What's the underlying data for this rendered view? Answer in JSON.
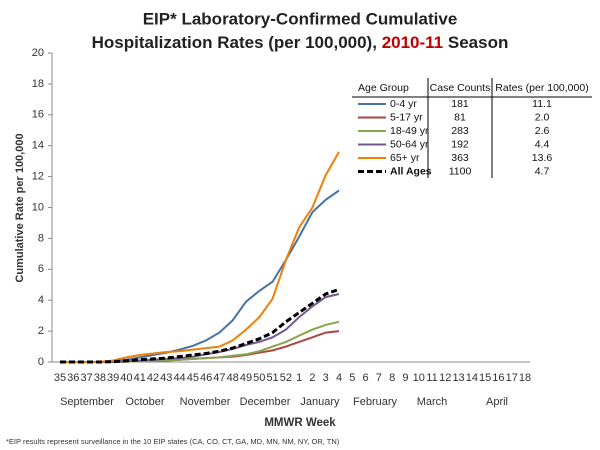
{
  "chart_data": {
    "type": "line",
    "title_line1": "EIP* Laboratory-Confirmed Cumulative",
    "title_line2": "Hospitalization Rates (per 100,000),",
    "title_highlight": "2010-11",
    "title_end": "Season",
    "highlight_color": "#c00000",
    "y_label": "Cumulative Rate per 100,000",
    "x_label": "MMWR Week",
    "footnote": "*EIP results represent surveillance in the 10 EIP states (CA, CO, CT, GA, MD, MN, NM, NY, OR, TN)",
    "months": [
      "September",
      "October",
      "November",
      "December",
      "January",
      "February",
      "March",
      "April"
    ],
    "categories": [
      "35",
      "36",
      "37",
      "38",
      "39",
      "40",
      "41",
      "42",
      "43",
      "44",
      "45",
      "46",
      "47",
      "48",
      "49",
      "50",
      "51",
      "52",
      "1",
      "2",
      "3",
      "4",
      "5",
      "6",
      "7",
      "8",
      "9",
      "10",
      "11",
      "12",
      "13",
      "14",
      "15",
      "16",
      "17",
      "18"
    ],
    "ylim": [
      0,
      20
    ],
    "yticks": [
      0,
      2,
      4,
      6,
      8,
      10,
      12,
      14,
      16,
      18,
      20
    ],
    "grid": false,
    "table_headers": [
      "Age Group",
      "Case Counts",
      "Rates (per 100,000)"
    ],
    "series": [
      {
        "name": "0-4 yr",
        "color": "#4572a7",
        "dashed": false,
        "case_count": 181,
        "rate": "11.1",
        "values": [
          0,
          0,
          0,
          0,
          0.05,
          0.15,
          0.3,
          0.45,
          0.6,
          0.8,
          1.05,
          1.4,
          1.9,
          2.7,
          3.9,
          4.6,
          5.2,
          6.6,
          8.1,
          9.7,
          10.5,
          11.1,
          null,
          null,
          null,
          null,
          null,
          null,
          null,
          null,
          null,
          null,
          null,
          null,
          null,
          null
        ]
      },
      {
        "name": "5-17 yr",
        "color": "#aa4643",
        "dashed": false,
        "case_count": 81,
        "rate": "2.0",
        "values": [
          0,
          0,
          0,
          0,
          0,
          0.02,
          0.05,
          0.08,
          0.1,
          0.15,
          0.2,
          0.25,
          0.3,
          0.35,
          0.45,
          0.6,
          0.75,
          1.0,
          1.3,
          1.6,
          1.9,
          2.0,
          null,
          null,
          null,
          null,
          null,
          null,
          null,
          null,
          null,
          null,
          null,
          null,
          null,
          null
        ]
      },
      {
        "name": "18-49 yr",
        "color": "#89a54e",
        "dashed": false,
        "case_count": 283,
        "rate": "2.6",
        "values": [
          0,
          0,
          0,
          0,
          0,
          0.02,
          0.05,
          0.08,
          0.12,
          0.15,
          0.2,
          0.25,
          0.3,
          0.4,
          0.5,
          0.7,
          1.0,
          1.3,
          1.7,
          2.1,
          2.4,
          2.6,
          null,
          null,
          null,
          null,
          null,
          null,
          null,
          null,
          null,
          null,
          null,
          null,
          null,
          null
        ]
      },
      {
        "name": "50-64 yr",
        "color": "#71588f",
        "dashed": false,
        "case_count": 192,
        "rate": "4.4",
        "values": [
          0,
          0,
          0,
          0,
          0.02,
          0.05,
          0.1,
          0.15,
          0.2,
          0.25,
          0.35,
          0.5,
          0.65,
          0.85,
          1.1,
          1.3,
          1.6,
          2.1,
          2.9,
          3.6,
          4.2,
          4.4,
          null,
          null,
          null,
          null,
          null,
          null,
          null,
          null,
          null,
          null,
          null,
          null,
          null,
          null
        ]
      },
      {
        "name": "65+ yr",
        "color": "#f07f09",
        "dashed": false,
        "case_count": 363,
        "rate": "13.6",
        "values": [
          0,
          0,
          0,
          0.02,
          0.1,
          0.3,
          0.45,
          0.55,
          0.65,
          0.7,
          0.8,
          0.9,
          1.0,
          1.4,
          2.1,
          2.9,
          4.1,
          6.6,
          8.7,
          10,
          12.1,
          13.6,
          null,
          null,
          null,
          null,
          null,
          null,
          null,
          null,
          null,
          null,
          null,
          null,
          null,
          null
        ]
      },
      {
        "name": "All Ages",
        "color": "#000000",
        "dashed": true,
        "case_count": 1100,
        "rate": "4.7",
        "values": [
          0,
          0,
          0,
          0,
          0.02,
          0.08,
          0.15,
          0.2,
          0.25,
          0.35,
          0.45,
          0.55,
          0.7,
          0.9,
          1.2,
          1.5,
          1.9,
          2.6,
          3.2,
          3.8,
          4.4,
          4.7,
          null,
          null,
          null,
          null,
          null,
          null,
          null,
          null,
          null,
          null,
          null,
          null,
          null,
          null
        ]
      }
    ]
  }
}
